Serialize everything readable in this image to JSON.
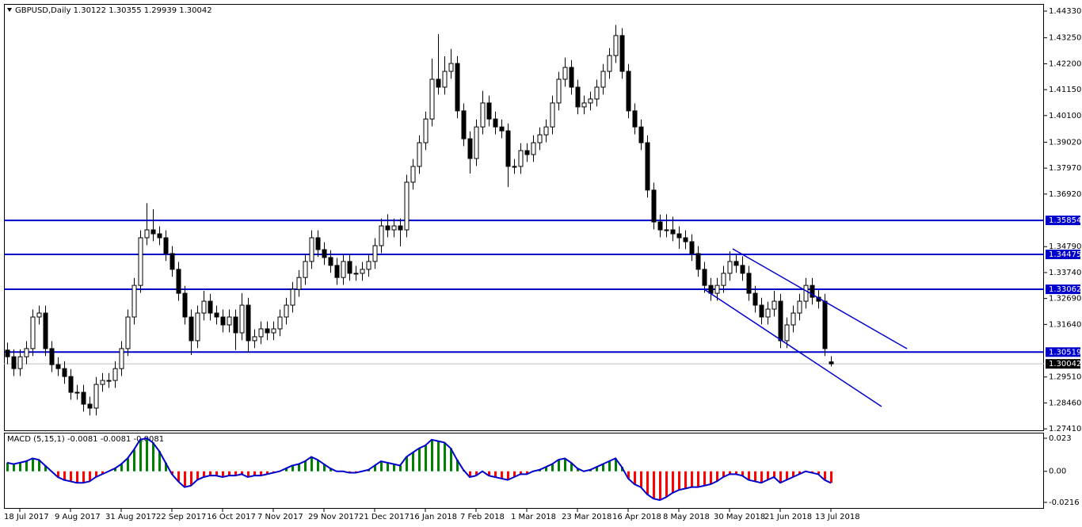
{
  "chart_data": [
    {
      "type": "candlestick",
      "title": "GBPUSD,Daily  1.30122 1.30355 1.29939 1.30042",
      "categories": [
        null,
        null,
        "18 Jul 2017",
        null,
        null,
        null,
        null,
        null,
        null,
        null,
        "9 Aug 2017",
        null,
        null,
        null,
        null,
        null,
        null,
        null,
        "31 Aug 2017",
        null,
        null,
        null,
        null,
        null,
        null,
        null,
        "22 Sep 2017",
        null,
        null,
        null,
        null,
        null,
        null,
        null,
        "16 Oct 2017",
        null,
        null,
        null,
        null,
        null,
        null,
        null,
        "7 Nov 2017",
        null,
        null,
        null,
        null,
        null,
        null,
        null,
        "29 Nov 2017",
        null,
        null,
        null,
        null,
        null,
        null,
        null,
        "21 Dec 2017",
        null,
        null,
        null,
        null,
        null,
        null,
        null,
        "16 Jan 2018",
        null,
        null,
        null,
        null,
        null,
        null,
        null,
        "7 Feb 2018",
        null,
        null,
        null,
        null,
        null,
        null,
        null,
        "1 Mar 2018",
        null,
        null,
        null,
        null,
        null,
        null,
        null,
        "23 Mar 2018",
        null,
        null,
        null,
        null,
        null,
        null,
        null,
        "16 Apr 2018",
        null,
        null,
        null,
        null,
        null,
        null,
        null,
        "8 May 2018",
        null,
        null,
        null,
        null,
        null,
        null,
        null,
        "30 May 2018",
        null,
        null,
        null,
        null,
        null,
        null,
        null,
        "21 Jun 2018",
        null,
        null,
        null,
        null,
        null,
        null,
        null,
        "13 Jul 2018"
      ],
      "open": [
        1.306,
        1.3033,
        1.2985,
        1.3033,
        1.3066,
        1.3194,
        1.321,
        1.3066,
        1.3001,
        1.2985,
        1.2953,
        1.2889,
        1.2889,
        1.2841,
        1.2825,
        1.2921,
        1.2937,
        1.2937,
        1.2985,
        1.3066,
        1.3194,
        1.3322,
        1.3515,
        1.3547,
        1.3531,
        1.3515,
        1.3451,
        1.3387,
        1.329,
        1.3194,
        1.3098,
        1.321,
        1.3258,
        1.321,
        1.3194,
        1.3162,
        1.3194,
        1.313,
        1.3242,
        1.3098,
        1.3114,
        1.3146,
        1.313,
        1.3146,
        1.3194,
        1.3242,
        1.3306,
        1.3354,
        1.3419,
        1.3515,
        1.3467,
        1.3435,
        1.3403,
        1.3354,
        1.3419,
        1.3371,
        1.3371,
        1.3387,
        1.3419,
        1.3483,
        1.3563,
        1.3547,
        1.3563,
        1.3547,
        1.374,
        1.3804,
        1.39,
        1.3996,
        1.4157,
        1.4125,
        1.4189,
        1.4221,
        1.4029,
        1.3916,
        1.3836,
        1.3964,
        1.4061,
        1.3996,
        1.3964,
        1.3948,
        1.3804,
        1.3804,
        1.3868,
        1.3852,
        1.39,
        1.3932,
        1.3964,
        1.4061,
        1.4157,
        1.4205,
        1.4125,
        1.4045,
        1.4061,
        1.4077,
        1.4125,
        1.4189,
        1.4253,
        1.4334,
        1.4189,
        1.4029,
        1.3964,
        1.39,
        1.3708,
        1.3579,
        1.3547,
        1.3547,
        1.3531,
        1.3515,
        1.3499,
        1.3451,
        1.3387,
        1.3322,
        1.329,
        1.3322,
        1.3371,
        1.3419,
        1.3403,
        1.3371,
        1.329,
        1.3242,
        1.3194,
        1.3226,
        1.3258,
        1.3098,
        1.3162,
        1.321,
        1.3258,
        1.3322,
        1.3274,
        1.3258,
        1.30122
      ],
      "high": [
        1.309,
        1.3063,
        1.3063,
        1.3096,
        1.3224,
        1.324,
        1.324,
        1.3096,
        1.3031,
        1.3015,
        1.2983,
        1.2919,
        1.2919,
        1.2871,
        1.2951,
        1.2967,
        1.2967,
        1.3015,
        1.3096,
        1.3224,
        1.3352,
        1.3545,
        1.3655,
        1.363,
        1.3561,
        1.3545,
        1.3481,
        1.3417,
        1.332,
        1.3224,
        1.324,
        1.33,
        1.3288,
        1.324,
        1.3224,
        1.3224,
        1.3224,
        1.329,
        1.3272,
        1.3144,
        1.3176,
        1.3176,
        1.3176,
        1.3224,
        1.3272,
        1.3336,
        1.3384,
        1.3449,
        1.3545,
        1.3545,
        1.3497,
        1.3465,
        1.3433,
        1.3449,
        1.3449,
        1.3401,
        1.3417,
        1.3449,
        1.3513,
        1.3593,
        1.361,
        1.3593,
        1.3593,
        1.377,
        1.3834,
        1.393,
        1.4026,
        1.424,
        1.434,
        1.425,
        1.428,
        1.4251,
        1.4059,
        1.3946,
        1.3994,
        1.411,
        1.4091,
        1.4026,
        1.3994,
        1.3978,
        1.3834,
        1.3898,
        1.3898,
        1.393,
        1.3962,
        1.3994,
        1.4091,
        1.4187,
        1.4245,
        1.4235,
        1.4155,
        1.4091,
        1.4107,
        1.4155,
        1.4219,
        1.4283,
        1.4377,
        1.4364,
        1.4219,
        1.4059,
        1.3994,
        1.393,
        1.3738,
        1.3609,
        1.361,
        1.36,
        1.3561,
        1.3545,
        1.3529,
        1.3481,
        1.3417,
        1.3352,
        1.3352,
        1.3401,
        1.346,
        1.3449,
        1.344,
        1.3401,
        1.332,
        1.3272,
        1.3256,
        1.33,
        1.3288,
        1.3192,
        1.324,
        1.3288,
        1.3352,
        1.3352,
        1.3304,
        1.3288,
        1.30355
      ],
      "low": [
        1.3003,
        1.2955,
        1.2955,
        1.3003,
        1.3036,
        1.3164,
        1.3036,
        1.2971,
        1.2955,
        1.2923,
        1.2859,
        1.2859,
        1.2811,
        1.2795,
        1.2795,
        1.2891,
        1.2907,
        1.2907,
        1.2955,
        1.3036,
        1.3164,
        1.3292,
        1.3485,
        1.3501,
        1.3485,
        1.3421,
        1.3357,
        1.326,
        1.3164,
        1.304,
        1.3068,
        1.318,
        1.318,
        1.3164,
        1.3132,
        1.3132,
        1.306,
        1.31,
        1.305,
        1.3068,
        1.3084,
        1.31,
        1.31,
        1.3116,
        1.3164,
        1.3212,
        1.3276,
        1.3324,
        1.3389,
        1.3437,
        1.3405,
        1.3373,
        1.3324,
        1.3324,
        1.3341,
        1.3341,
        1.3341,
        1.3357,
        1.3389,
        1.3453,
        1.3517,
        1.3517,
        1.348,
        1.3517,
        1.371,
        1.3774,
        1.387,
        1.3966,
        1.4095,
        1.4095,
        1.4159,
        1.3999,
        1.3886,
        1.3775,
        1.3806,
        1.3934,
        1.3966,
        1.3934,
        1.3918,
        1.372,
        1.3774,
        1.3774,
        1.3822,
        1.3822,
        1.387,
        1.3902,
        1.3934,
        1.4031,
        1.4127,
        1.4095,
        1.4015,
        1.4015,
        1.4031,
        1.4047,
        1.4095,
        1.4159,
        1.4223,
        1.4159,
        1.3999,
        1.3934,
        1.387,
        1.3678,
        1.3549,
        1.3517,
        1.3517,
        1.3501,
        1.347,
        1.3469,
        1.3421,
        1.3357,
        1.3292,
        1.326,
        1.326,
        1.3292,
        1.3341,
        1.3373,
        1.3341,
        1.326,
        1.3212,
        1.3164,
        1.3164,
        1.3196,
        1.3068,
        1.3068,
        1.3132,
        1.318,
        1.3228,
        1.3244,
        1.3228,
        1.3036,
        1.29939
      ],
      "close": [
        1.3033,
        1.2985,
        1.3033,
        1.3066,
        1.3194,
        1.321,
        1.3066,
        1.3001,
        1.2985,
        1.2953,
        1.2889,
        1.2889,
        1.2841,
        1.2825,
        1.2921,
        1.2937,
        1.2937,
        1.2985,
        1.3066,
        1.3194,
        1.3322,
        1.3515,
        1.3547,
        1.3531,
        1.3515,
        1.3451,
        1.3387,
        1.329,
        1.3194,
        1.3098,
        1.321,
        1.3258,
        1.321,
        1.3194,
        1.3162,
        1.3194,
        1.313,
        1.3242,
        1.3098,
        1.3114,
        1.3146,
        1.313,
        1.3146,
        1.3194,
        1.3242,
        1.3306,
        1.3354,
        1.3419,
        1.3515,
        1.3467,
        1.3435,
        1.3403,
        1.3354,
        1.3419,
        1.3371,
        1.3371,
        1.3387,
        1.3419,
        1.3483,
        1.3563,
        1.3547,
        1.3563,
        1.3547,
        1.374,
        1.3804,
        1.39,
        1.3996,
        1.4157,
        1.4125,
        1.4189,
        1.4221,
        1.4029,
        1.3916,
        1.3836,
        1.3964,
        1.4061,
        1.3996,
        1.3964,
        1.3948,
        1.3804,
        1.3804,
        1.3868,
        1.3852,
        1.39,
        1.3932,
        1.3964,
        1.4061,
        1.4157,
        1.4205,
        1.4125,
        1.4045,
        1.4061,
        1.4077,
        1.4125,
        1.4189,
        1.4253,
        1.4334,
        1.4189,
        1.4029,
        1.3964,
        1.39,
        1.3708,
        1.3579,
        1.3547,
        1.3547,
        1.3531,
        1.3515,
        1.3499,
        1.3451,
        1.3387,
        1.3322,
        1.329,
        1.3322,
        1.3371,
        1.3419,
        1.3403,
        1.3371,
        1.329,
        1.3242,
        1.3194,
        1.3226,
        1.3258,
        1.3098,
        1.3162,
        1.321,
        1.3258,
        1.3322,
        1.3274,
        1.3258,
        1.3066,
        1.30042
      ],
      "up_color": "#ffffff",
      "down_color": "#000000",
      "wick_color": "#000000",
      "ylim": [
        1.2735,
        1.4462
      ],
      "yticks": [
        {
          "value": 1.4433,
          "label": "1.44330"
        },
        {
          "value": 1.4325,
          "label": "1.43250"
        },
        {
          "value": 1.422,
          "label": "1.42200"
        },
        {
          "value": 1.4115,
          "label": "1.41150"
        },
        {
          "value": 1.401,
          "label": "1.40100"
        },
        {
          "value": 1.3902,
          "label": "1.39020"
        },
        {
          "value": 1.3797,
          "label": "1.37970"
        },
        {
          "value": 1.3692,
          "label": "1.36920"
        },
        {
          "value": 1.3479,
          "label": "1.34790"
        },
        {
          "value": 1.3374,
          "label": "1.33740"
        },
        {
          "value": 1.3269,
          "label": "1.32690"
        },
        {
          "value": 1.3164,
          "label": "1.31640"
        },
        {
          "value": 1.2951,
          "label": "1.29510"
        },
        {
          "value": 1.2846,
          "label": "1.28460"
        },
        {
          "value": 1.2741,
          "label": "1.27410"
        }
      ],
      "levels": [
        {
          "value": 1.35854,
          "label": "1.35854"
        },
        {
          "value": 1.34475,
          "label": "1.34475"
        },
        {
          "value": 1.33062,
          "label": "1.33062"
        },
        {
          "value": 1.30519,
          "label": "1.30519"
        }
      ],
      "level_color": "#0000cc",
      "last_price": {
        "value": 1.30042,
        "label": "1.30042"
      }
    },
    {
      "type": "macd",
      "title": "MACD (5,15,1) -0.0081 -0.0081 -0.0081",
      "values": [
        0.006,
        0.005,
        0.006,
        0.007,
        0.009,
        0.008,
        0.004,
        0,
        -0.004,
        -0.006,
        -0.007,
        -0.008,
        -0.008,
        -0.007,
        -0.004,
        -0.002,
        0,
        0.002,
        0.005,
        0.009,
        0.015,
        0.022,
        0.023,
        0.02,
        0.014,
        0.006,
        -0.002,
        -0.007,
        -0.011,
        -0.01,
        -0.006,
        -0.004,
        -0.003,
        -0.003,
        -0.004,
        -0.003,
        -0.003,
        -0.002,
        -0.004,
        -0.003,
        -0.003,
        -0.002,
        -0.001,
        0,
        0.002,
        0.004,
        0.005,
        0.007,
        0.01,
        0.008,
        0.005,
        0.002,
        0,
        0,
        -0.001,
        -0.001,
        0,
        0.001,
        0.004,
        0.007,
        0.006,
        0.005,
        0.004,
        0.01,
        0.013,
        0.016,
        0.018,
        0.022,
        0.021,
        0.02,
        0.016,
        0.008,
        0.001,
        -0.004,
        -0.003,
        0,
        -0.003,
        -0.004,
        -0.005,
        -0.006,
        -0.004,
        -0.002,
        -0.002,
        0,
        0.001,
        0.003,
        0.005,
        0.008,
        0.009,
        0.006,
        0.002,
        0,
        0.001,
        0.003,
        0.005,
        0.007,
        0.009,
        0.003,
        -0.005,
        -0.009,
        -0.011,
        -0.016,
        -0.019,
        -0.02,
        -0.018,
        -0.015,
        -0.013,
        -0.012,
        -0.011,
        -0.011,
        -0.01,
        -0.009,
        -0.007,
        -0.004,
        -0.002,
        -0.002,
        -0.003,
        -0.006,
        -0.007,
        -0.008,
        -0.006,
        -0.004,
        -0.008,
        -0.006,
        -0.004,
        -0.002,
        0,
        -0.001,
        -0.002,
        -0.006,
        -0.0081
      ],
      "up_color": "#008000",
      "down_color": "#ff0000",
      "line_color": "#0000cc",
      "ylim": [
        -0.0255,
        0.0263
      ],
      "yticks": [
        0.023,
        {
          "value": 0,
          "label": "0.00"
        },
        -0.0216
      ]
    }
  ]
}
